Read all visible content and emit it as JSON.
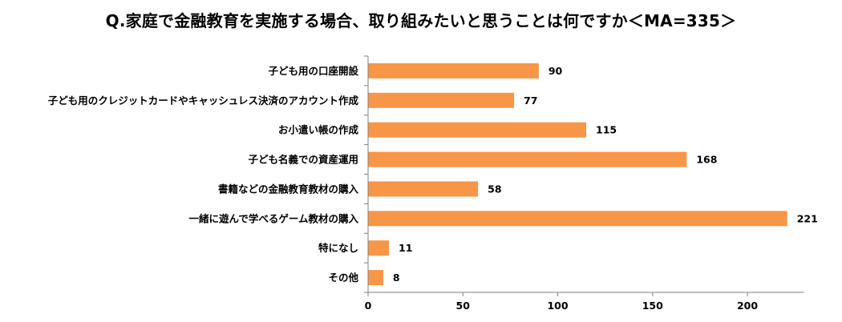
{
  "chart_data": {
    "type": "bar",
    "orientation": "horizontal",
    "title": "Q.家庭で金融教育を実施する場合、取り組みたいと思うことは何ですか＜MA=335＞",
    "categories": [
      "子ども用の口座開設",
      "子ども用のクレジットカードやキャッシュレス決済のアカウント作成",
      "お小遣い帳の作成",
      "子ども名義での資産運用",
      "書籍などの金融教育教材の購入",
      "一緒に遊んで学べるゲーム教材の購入",
      "特になし",
      "その他"
    ],
    "values": [
      90,
      77,
      115,
      168,
      58,
      221,
      11,
      8
    ],
    "xlim": [
      0,
      230
    ],
    "xticks": [
      0,
      50,
      100,
      150,
      200
    ],
    "grid": false,
    "legend": "none",
    "bar_color": "#F79646",
    "axis_color": "#808080"
  }
}
